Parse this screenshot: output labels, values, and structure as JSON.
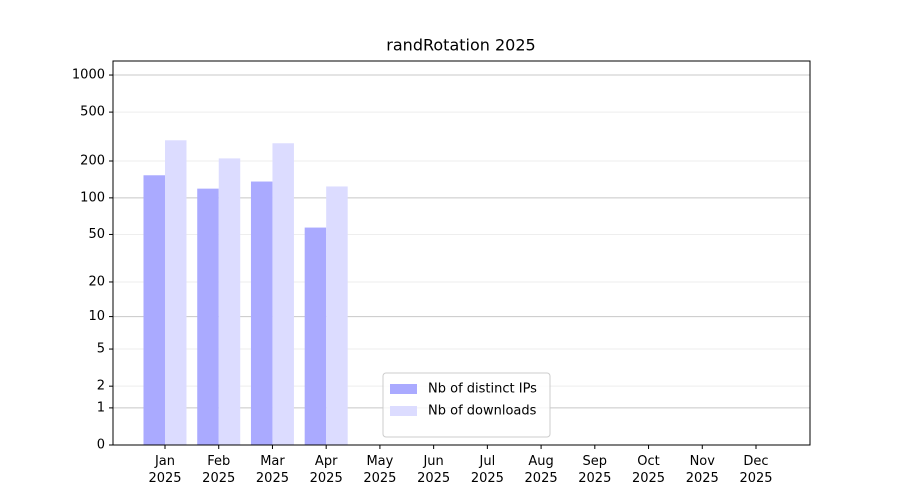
{
  "chart_data": {
    "type": "bar",
    "title": "randRotation 2025",
    "categories": [
      "Jan 2025",
      "Feb 2025",
      "Mar 2025",
      "Apr 2025",
      "May 2025",
      "Jun 2025",
      "Jul 2025",
      "Aug 2025",
      "Sep 2025",
      "Oct 2025",
      "Nov 2025",
      "Dec 2025"
    ],
    "series": [
      {
        "name": "Nb of distinct IPs",
        "color": "#aaaaff",
        "values": [
          153,
          119,
          136,
          57,
          null,
          null,
          null,
          null,
          null,
          null,
          null,
          null
        ]
      },
      {
        "name": "Nb of downloads",
        "color": "#dcdcff",
        "values": [
          295,
          210,
          279,
          124,
          null,
          null,
          null,
          null,
          null,
          null,
          null,
          null
        ]
      }
    ],
    "yscale": "log(x+1)",
    "ylim": [
      0,
      1300
    ],
    "yticks": [
      0,
      1,
      2,
      5,
      10,
      20,
      50,
      100,
      200,
      500,
      1000
    ],
    "grid": true,
    "legend": "lower center"
  }
}
